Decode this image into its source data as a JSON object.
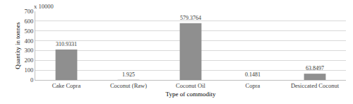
{
  "chart_data": {
    "type": "bar",
    "x_label": "Type of commodity",
    "y_label": "Quantity in tonnes",
    "annotations": [
      "x 10000"
    ],
    "categories": [
      "Cake Copra",
      "Coconut (Raw)",
      "Coconut Oil",
      "Copra",
      "Desiccated Coconut"
    ],
    "values": [
      310.9331,
      1.925,
      579.3764,
      0.1481,
      63.8497
    ],
    "color": "#8f8f8f",
    "data_labels": true,
    "ylim": [
      0,
      700
    ],
    "yticks": [
      0,
      100,
      200,
      300,
      400,
      500,
      600,
      700
    ],
    "grid": true
  }
}
